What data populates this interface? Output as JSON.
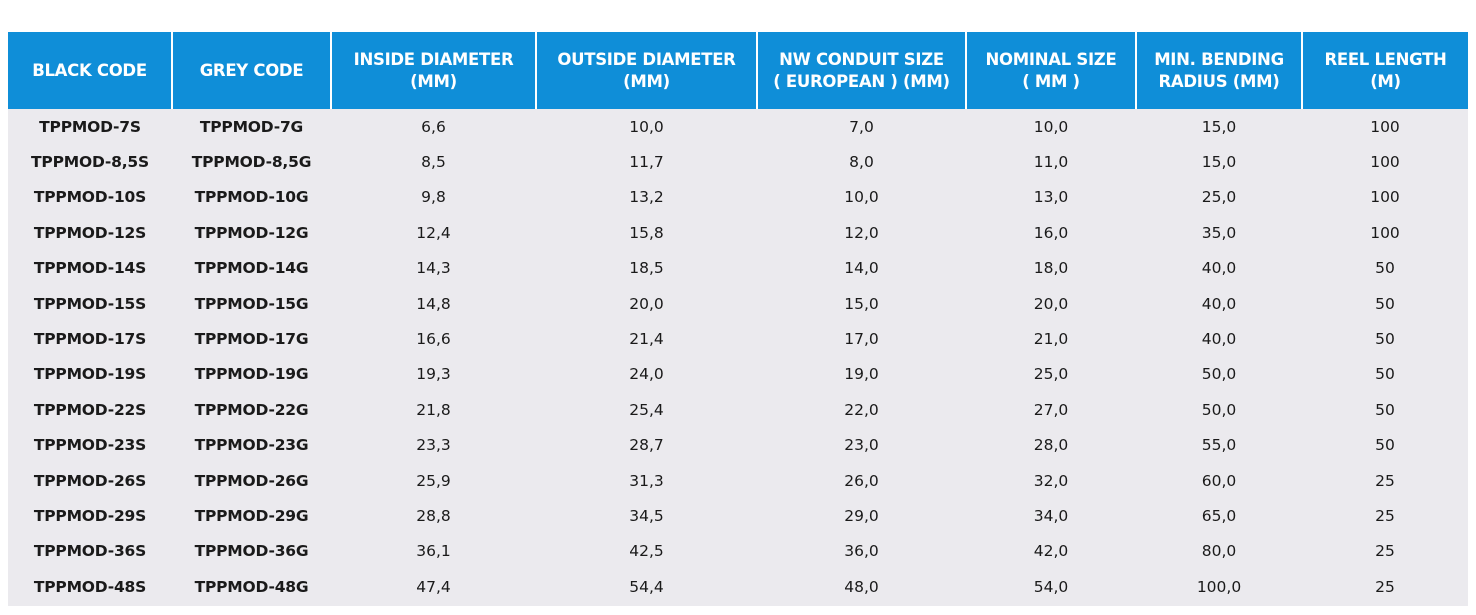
{
  "table": {
    "headers": [
      [
        "BLACK CODE"
      ],
      [
        "GREY CODE"
      ],
      [
        "INSIDE DIAMETER",
        "(MM)"
      ],
      [
        "OUTSIDE DIAMETER",
        "(MM)"
      ],
      [
        "NW CONDUIT SIZE",
        "( EUROPEAN ) (MM)"
      ],
      [
        "NOMINAL SIZE",
        "( MM )"
      ],
      [
        "MIN. BENDING",
        "RADIUS (MM)"
      ],
      [
        "REEL LENGTH",
        "(M)"
      ]
    ],
    "rows": [
      [
        "TPPMOD-7S",
        "TPPMOD-7G",
        "6,6",
        "10,0",
        "7,0",
        "10,0",
        "15,0",
        "100"
      ],
      [
        "TPPMOD-8,5S",
        "TPPMOD-8,5G",
        "8,5",
        "11,7",
        "8,0",
        "11,0",
        "15,0",
        "100"
      ],
      [
        "TPPMOD-10S",
        "TPPMOD-10G",
        "9,8",
        "13,2",
        "10,0",
        "13,0",
        "25,0",
        "100"
      ],
      [
        "TPPMOD-12S",
        "TPPMOD-12G",
        "12,4",
        "15,8",
        "12,0",
        "16,0",
        "35,0",
        "100"
      ],
      [
        "TPPMOD-14S",
        "TPPMOD-14G",
        "14,3",
        "18,5",
        "14,0",
        "18,0",
        "40,0",
        "50"
      ],
      [
        "TPPMOD-15S",
        "TPPMOD-15G",
        "14,8",
        "20,0",
        "15,0",
        "20,0",
        "40,0",
        "50"
      ],
      [
        "TPPMOD-17S",
        "TPPMOD-17G",
        "16,6",
        "21,4",
        "17,0",
        "21,0",
        "40,0",
        "50"
      ],
      [
        "TPPMOD-19S",
        "TPPMOD-19G",
        "19,3",
        "24,0",
        "19,0",
        "25,0",
        "50,0",
        "50"
      ],
      [
        "TPPMOD-22S",
        "TPPMOD-22G",
        "21,8",
        "25,4",
        "22,0",
        "27,0",
        "50,0",
        "50"
      ],
      [
        "TPPMOD-23S",
        "TPPMOD-23G",
        "23,3",
        "28,7",
        "23,0",
        "28,0",
        "55,0",
        "50"
      ],
      [
        "TPPMOD-26S",
        "TPPMOD-26G",
        "25,9",
        "31,3",
        "26,0",
        "32,0",
        "60,0",
        "25"
      ],
      [
        "TPPMOD-29S",
        "TPPMOD-29G",
        "28,8",
        "34,5",
        "29,0",
        "34,0",
        "65,0",
        "25"
      ],
      [
        "TPPMOD-36S",
        "TPPMOD-36G",
        "36,1",
        "42,5",
        "36,0",
        "42,0",
        "80,0",
        "25"
      ],
      [
        "TPPMOD-48S",
        "TPPMOD-48G",
        "47,4",
        "54,4",
        "48,0",
        "54,0",
        "100,0",
        "25"
      ]
    ]
  },
  "colors": {
    "header_bg": "#0f8ed8",
    "header_text": "#ffffff",
    "body_bg": "#ebeaee",
    "body_text": "#1a1a1a"
  }
}
